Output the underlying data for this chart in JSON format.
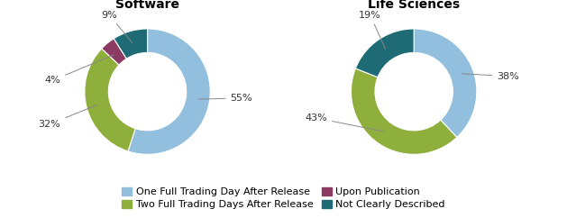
{
  "software_title": "Software",
  "life_sciences_title": "Life Sciences",
  "software_values": [
    55,
    32,
    4,
    9
  ],
  "life_sciences_values": [
    38,
    43,
    19
  ],
  "labels_row1": [
    "One Full Trading Day After Release",
    "Two Full Trading Days After Release"
  ],
  "labels_row2": [
    "Upon Publication",
    "Not Clearly Described"
  ],
  "colors": [
    "#92BFDD",
    "#8FAF3C",
    "#8B3A62",
    "#1F6B75"
  ],
  "ls_colors_idx": [
    0,
    1,
    3
  ],
  "software_pct_labels": [
    "55%",
    "32%",
    "4%",
    "9%"
  ],
  "life_sciences_pct_labels": [
    "38%",
    "43%",
    "19%"
  ],
  "background_color": "#FFFFFF",
  "title_fontsize": 10,
  "label_fontsize": 8,
  "legend_fontsize": 8,
  "donut_width": 0.38
}
